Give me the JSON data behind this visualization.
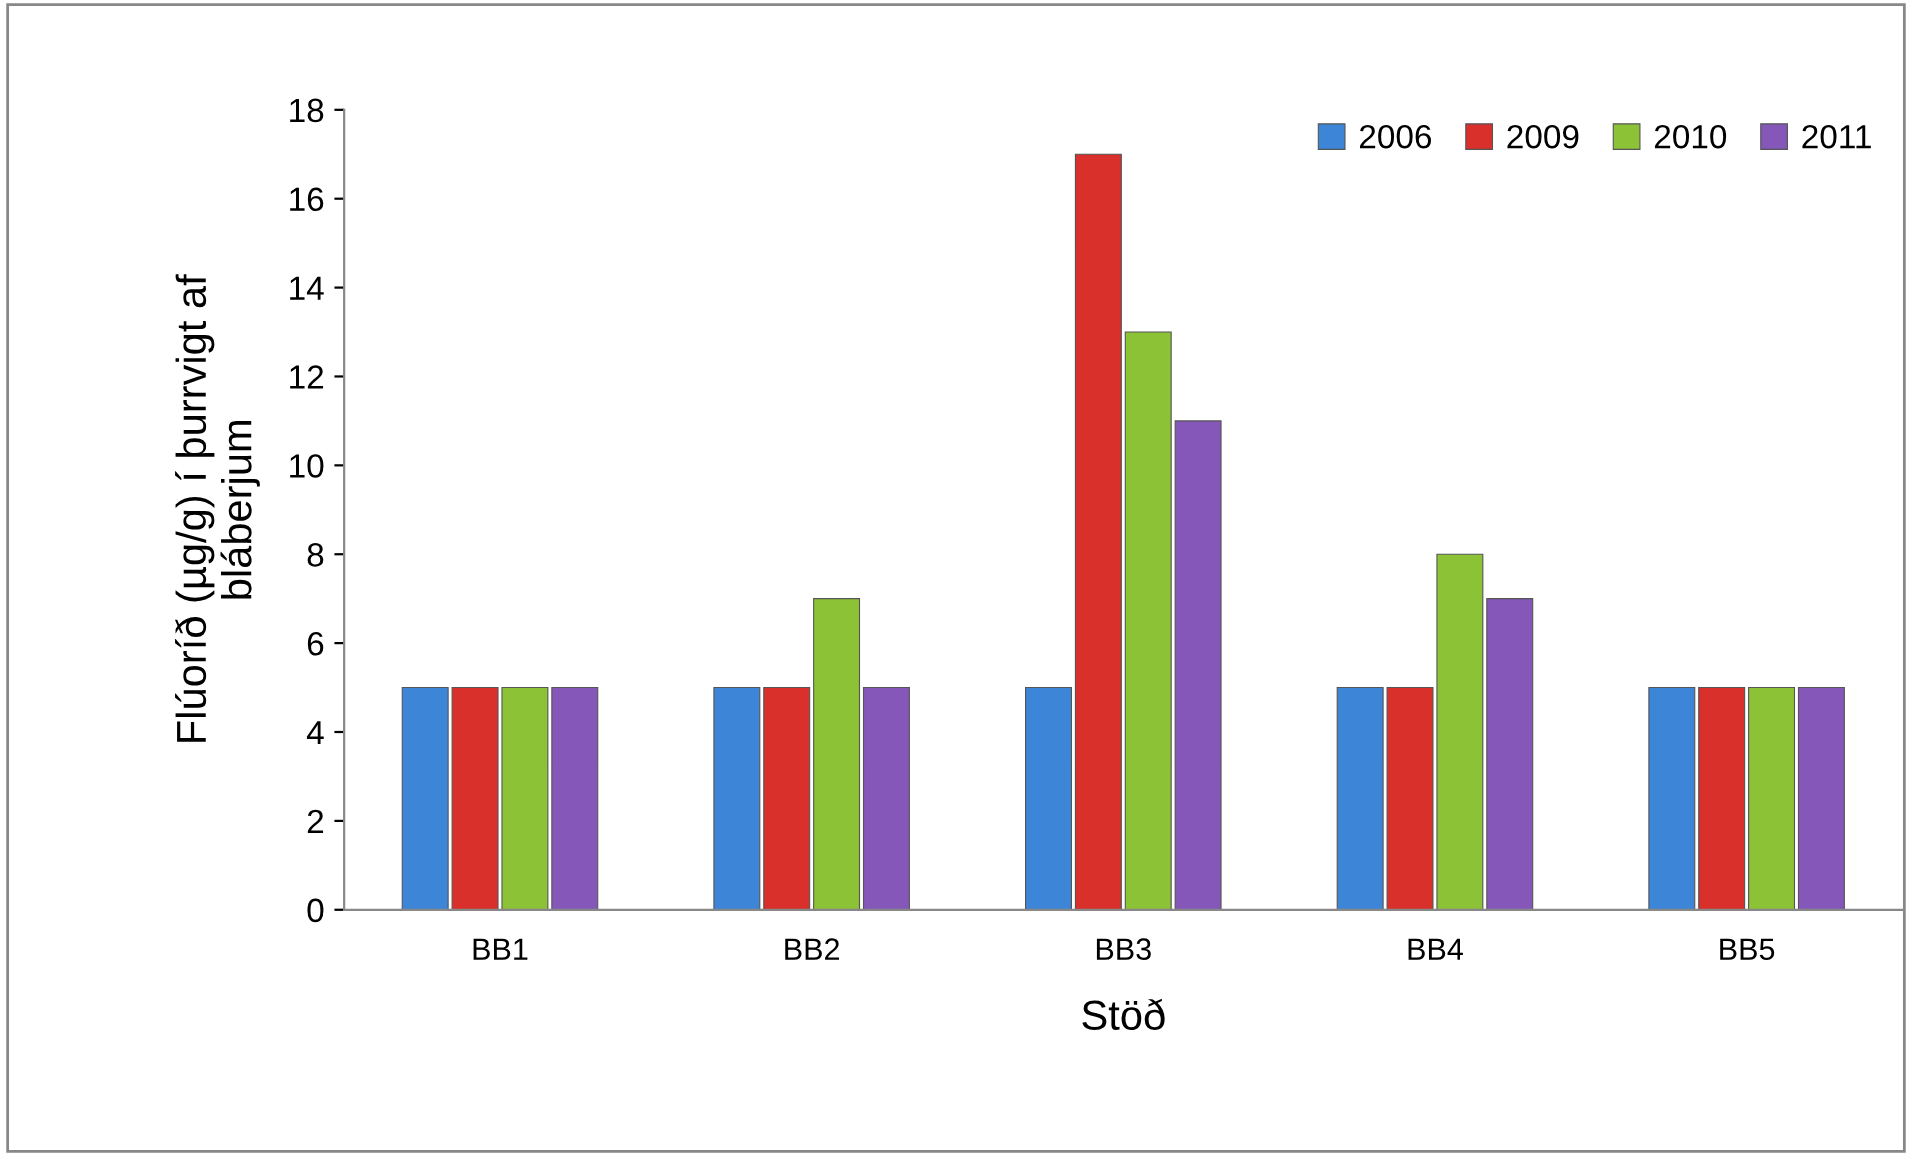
{
  "chart_data": {
    "type": "bar",
    "xlabel": "Stöð",
    "ylabel": "Flúoríð (µg/g) í þurrvigt af\nbláberjum",
    "categories": [
      "BB1",
      "BB2",
      "BB3",
      "BB4",
      "BB5"
    ],
    "series": [
      {
        "name": "2006",
        "color": "#3d85d6",
        "values": [
          5,
          5,
          5,
          5,
          5
        ]
      },
      {
        "name": "2009",
        "color": "#d9302c",
        "values": [
          5,
          5,
          17,
          5,
          5
        ]
      },
      {
        "name": "2010",
        "color": "#8cc236",
        "values": [
          5,
          7,
          13,
          8,
          5
        ]
      },
      {
        "name": "2011",
        "color": "#8557b8",
        "values": [
          5,
          5,
          11,
          7,
          5
        ]
      }
    ],
    "ylim": [
      0,
      18
    ],
    "yticks": [
      0,
      2,
      4,
      6,
      8,
      10,
      12,
      14,
      16,
      18
    ],
    "grid": false,
    "legend": "top right"
  }
}
